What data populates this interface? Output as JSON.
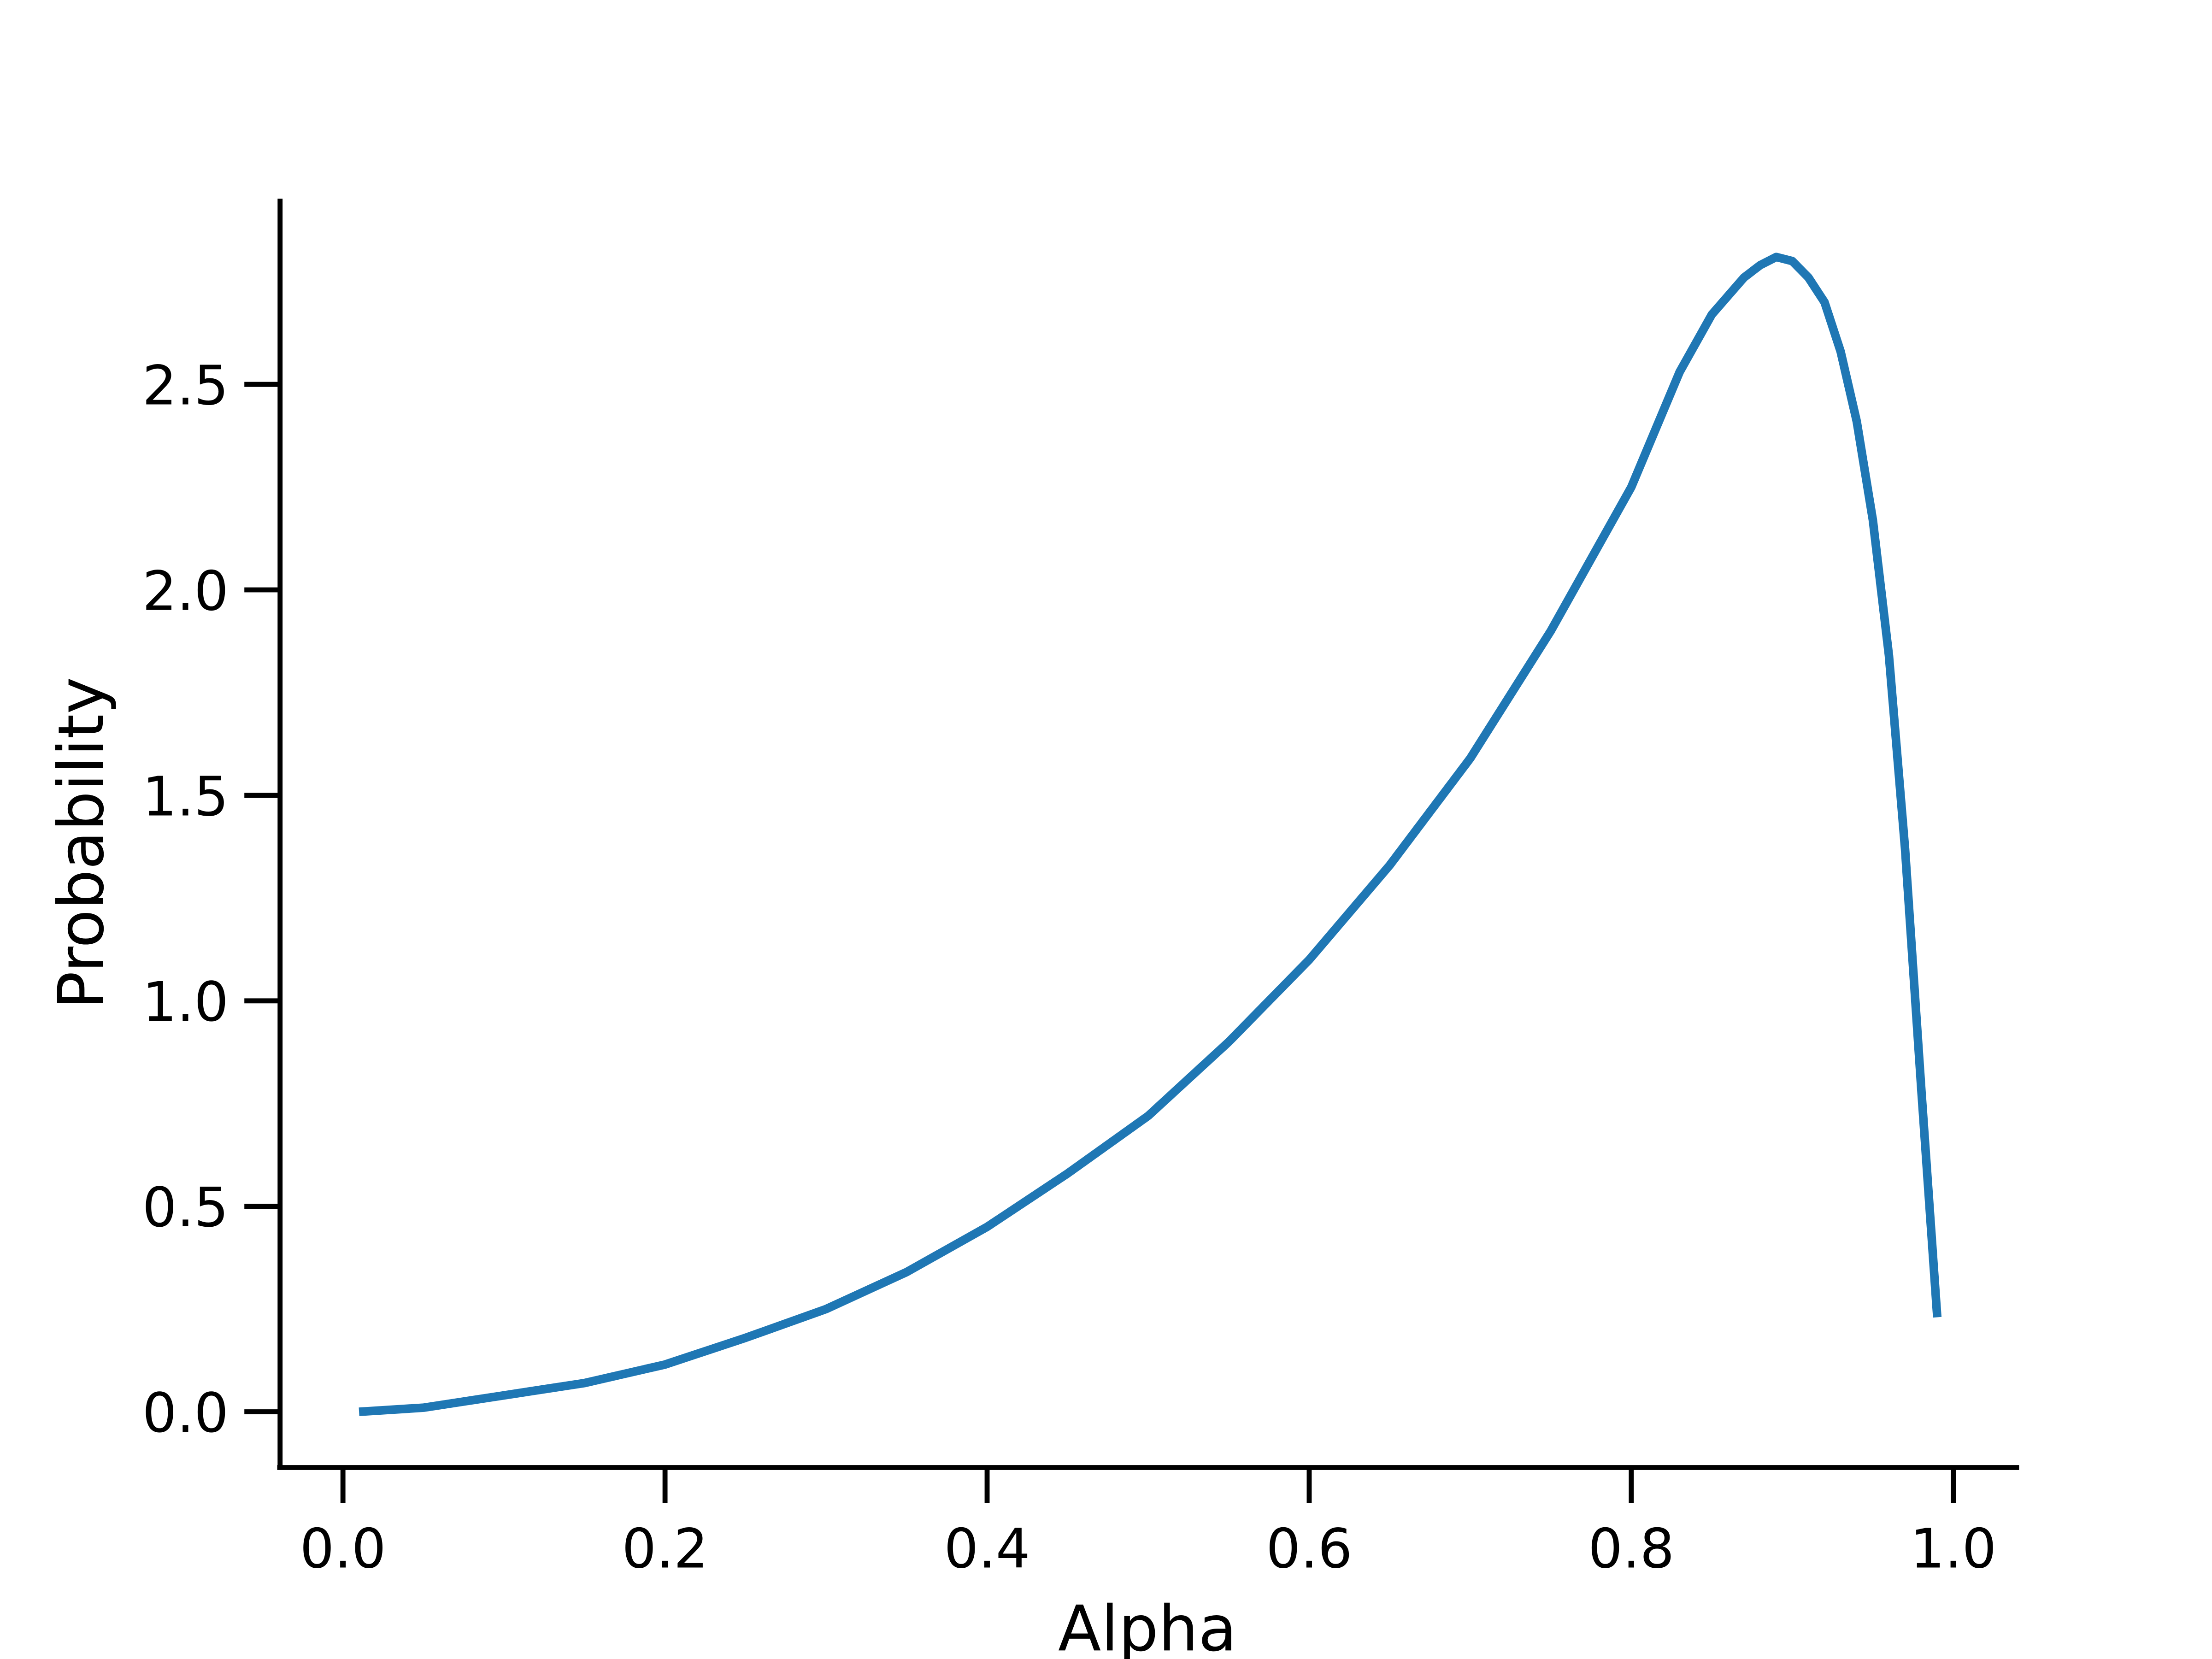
{
  "chart_data": {
    "type": "line",
    "title": "",
    "xlabel": "Alpha",
    "ylabel": "Probability",
    "xlim": [
      -0.04,
      1.04
    ],
    "ylim": [
      -0.14,
      2.95
    ],
    "xticks": [
      "0.0",
      "0.2",
      "0.4",
      "0.6",
      "0.8",
      "1.0"
    ],
    "yticks": [
      "0.0",
      "0.5",
      "1.0",
      "1.5",
      "2.0",
      "2.5"
    ],
    "grid": false,
    "legend": "none",
    "line_color": "#1f77b4",
    "series": [
      {
        "x": [
          0.01,
          0.05,
          0.1,
          0.15,
          0.2,
          0.25,
          0.3,
          0.35,
          0.4,
          0.45,
          0.5,
          0.55,
          0.6,
          0.65,
          0.7,
          0.75,
          0.8,
          0.83,
          0.85,
          0.87,
          0.88,
          0.89,
          0.9,
          0.91,
          0.92,
          0.93,
          0.94,
          0.95,
          0.96,
          0.97,
          0.98,
          0.99
        ],
        "y": [
          0.0,
          0.01,
          0.04,
          0.07,
          0.115,
          0.18,
          0.25,
          0.34,
          0.45,
          0.58,
          0.72,
          0.9,
          1.1,
          1.33,
          1.59,
          1.9,
          2.25,
          2.53,
          2.67,
          2.76,
          2.79,
          2.81,
          2.8,
          2.76,
          2.7,
          2.58,
          2.41,
          2.17,
          1.84,
          1.37,
          0.79,
          0.23
        ]
      }
    ]
  }
}
